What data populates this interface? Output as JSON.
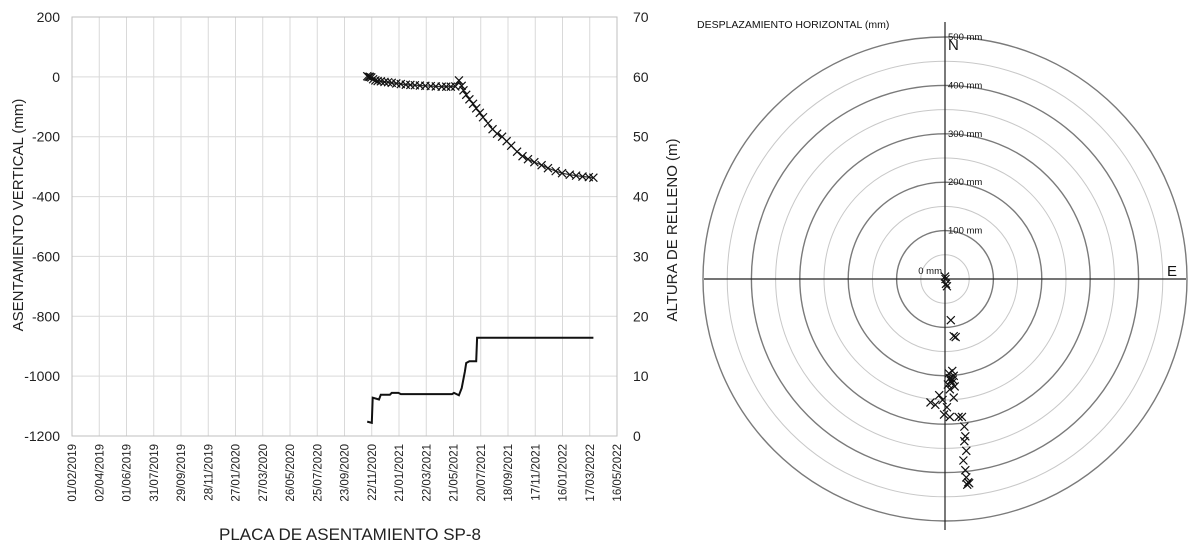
{
  "chart_data": [
    {
      "type": "line",
      "title": "PLACA DE ASENTAMIENTO SP-8",
      "xlabel": "",
      "ylabel": "ASENTAMIENTO VERTICAL  (mm)",
      "y2label": "ALTURA DE RELLENO (m)",
      "ylim": [
        -1200,
        200
      ],
      "y2lim": [
        0,
        70
      ],
      "yticks": [
        "200",
        "0",
        "-200",
        "-400",
        "-600",
        "-800",
        "-1000",
        "-1200"
      ],
      "y2ticks": [
        "70",
        "60",
        "50",
        "40",
        "30",
        "20",
        "10",
        "0"
      ],
      "xticks": [
        "01/02/2019",
        "02/04/2019",
        "01/06/2019",
        "31/07/2019",
        "29/09/2019",
        "28/11/2019",
        "27/01/2020",
        "27/03/2020",
        "26/05/2020",
        "25/07/2020",
        "23/09/2020",
        "22/11/2020",
        "21/01/2021",
        "22/03/2021",
        "21/05/2021",
        "20/07/2021",
        "18/09/2021",
        "17/11/2021",
        "16/01/2022",
        "17/03/2022",
        "16/05/2022"
      ],
      "grid": true,
      "series": [
        {
          "kind": "settlement",
          "axis": "left",
          "marker": "x",
          "x": [
            "2020-11-12",
            "2020-11-15",
            "2020-11-18",
            "2020-11-21",
            "2020-11-25",
            "2020-11-30",
            "2020-12-05",
            "2020-12-12",
            "2020-12-20",
            "2020-12-28",
            "2021-01-05",
            "2021-01-15",
            "2021-01-25",
            "2021-02-05",
            "2021-02-15",
            "2021-02-25",
            "2021-03-08",
            "2021-03-20",
            "2021-04-01",
            "2021-04-12",
            "2021-04-25",
            "2021-05-05",
            "2021-05-15",
            "2021-05-25",
            "2021-06-02",
            "2021-06-08",
            "2021-06-12",
            "2021-06-18",
            "2021-06-25",
            "2021-07-03",
            "2021-07-10",
            "2021-07-18",
            "2021-07-25",
            "2021-08-05",
            "2021-08-15",
            "2021-08-25",
            "2021-09-05",
            "2021-09-15",
            "2021-09-25",
            "2021-10-08",
            "2021-10-20",
            "2021-11-01",
            "2021-11-15",
            "2021-12-01",
            "2021-12-15",
            "2022-01-01",
            "2022-01-15",
            "2022-02-01",
            "2022-02-15",
            "2022-03-01",
            "2022-03-15",
            "2022-03-25"
          ],
          "y": [
            2,
            0,
            0,
            -2,
            -8,
            -12,
            -14,
            -15,
            -17,
            -18,
            -20,
            -22,
            -24,
            -26,
            -27,
            -28,
            -29,
            -30,
            -31,
            -32,
            -33,
            -33,
            -33,
            -32,
            -12,
            -30,
            -45,
            -60,
            -75,
            -90,
            -105,
            -120,
            -135,
            -155,
            -175,
            -190,
            -200,
            -215,
            -230,
            -250,
            -265,
            -275,
            -285,
            -295,
            -305,
            -315,
            -322,
            -327,
            -330,
            -333,
            -335,
            -337
          ]
        },
        {
          "kind": "fill-height",
          "axis": "right",
          "marker": "none",
          "x": [
            "2020-11-12",
            "2020-11-22",
            "2020-11-24",
            "2020-12-08",
            "2020-12-12",
            "2021-01-01",
            "2021-01-05",
            "2021-01-20",
            "2021-01-25",
            "2021-05-18",
            "2021-05-22",
            "2021-06-02",
            "2021-06-08",
            "2021-06-15",
            "2021-06-18",
            "2021-06-25",
            "2021-07-10",
            "2021-07-12",
            "2022-03-25"
          ],
          "y": [
            2.4,
            2.2,
            6.4,
            6.1,
            6.9,
            6.9,
            7.2,
            7.2,
            7.0,
            7.0,
            7.2,
            6.8,
            8.0,
            10.8,
            12.2,
            12.5,
            12.5,
            16.4,
            16.4
          ]
        }
      ]
    },
    {
      "type": "scatter",
      "title": "DESPLAZAMIENTO HORIZONTAL (mm)",
      "polar": true,
      "radius_max": 500,
      "rings": [
        0,
        50,
        100,
        150,
        200,
        250,
        300,
        350,
        400,
        450,
        500
      ],
      "ring_labels": [
        "0 mm",
        "100 mm",
        "200 mm",
        "300 mm",
        "400 mm",
        "500 mm"
      ],
      "north_label": "N",
      "east_label": "E",
      "marker": "x",
      "points_east_north": [
        [
          0,
          5
        ],
        [
          1,
          0
        ],
        [
          2,
          -10
        ],
        [
          4,
          -15
        ],
        [
          12,
          -85
        ],
        [
          22,
          -120
        ],
        [
          18,
          -118
        ],
        [
          8,
          -195
        ],
        [
          15,
          -190
        ],
        [
          10,
          -205
        ],
        [
          12,
          -210
        ],
        [
          18,
          -200
        ],
        [
          14,
          -215
        ],
        [
          6,
          -218
        ],
        [
          16,
          -208
        ],
        [
          10,
          -228
        ],
        [
          20,
          -222
        ],
        [
          -12,
          -240
        ],
        [
          -20,
          -260
        ],
        [
          -30,
          -255
        ],
        [
          -5,
          -250
        ],
        [
          4,
          -265
        ],
        [
          18,
          -245
        ],
        [
          10,
          -285
        ],
        [
          -2,
          -280
        ],
        [
          28,
          -285
        ],
        [
          35,
          -285
        ],
        [
          40,
          -305
        ],
        [
          42,
          -325
        ],
        [
          40,
          -335
        ],
        [
          44,
          -355
        ],
        [
          38,
          -375
        ],
        [
          42,
          -395
        ],
        [
          44,
          -410
        ],
        [
          48,
          -420
        ],
        [
          46,
          -425
        ],
        [
          50,
          -422
        ]
      ]
    }
  ]
}
